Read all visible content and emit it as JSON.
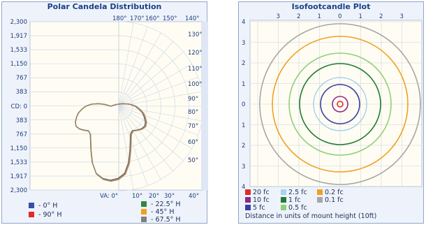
{
  "polar": {
    "title": "Polar Candela Distribution",
    "left_axis": [
      "2,300",
      "1,917",
      "1,533",
      "1,150",
      "767",
      "383",
      "CD: 0",
      "383",
      "767",
      "1,150",
      "1,533",
      "1,917",
      "2,300"
    ],
    "top_angles": [
      "180°",
      "170°",
      "160°",
      "150°",
      "140°"
    ],
    "right_angles": [
      "130°",
      "120°",
      "110°",
      "100°",
      "90°",
      "80°",
      "70°",
      "60°",
      "50°"
    ],
    "bottom_va": "VA: 0°",
    "bottom_angles": [
      "10°",
      "20°",
      "30°",
      "40°"
    ],
    "legend": [
      {
        "label": " - 0° H",
        "color": "#3a4fa0"
      },
      {
        "label": " - 90° H",
        "color": "#e02b2b"
      },
      {
        "label": " - 22.5° H",
        "color": "#2c8a3a"
      },
      {
        "label": " - 45° H",
        "color": "#f0a020"
      },
      {
        "label": " - 67.5° H",
        "color": "#808080"
      }
    ]
  },
  "iso": {
    "title": "Isofootcandle Plot",
    "top_ticks": [
      "3",
      "2",
      "1",
      "0",
      "1",
      "2",
      "3"
    ],
    "left_ticks": [
      "4",
      "3",
      "2",
      "1",
      "0",
      "1",
      "2",
      "3",
      "4"
    ],
    "legend": [
      {
        "label": "20 fc",
        "color": "#e02b2b"
      },
      {
        "label": "10 fc",
        "color": "#8a2a8a"
      },
      {
        "label": "5 fc",
        "color": "#3a3fa5"
      },
      {
        "label": "2.5 fc",
        "color": "#a8d3ec"
      },
      {
        "label": "1 fc",
        "color": "#1f7d33"
      },
      {
        "label": "0.5 fc",
        "color": "#8fcf7a"
      },
      {
        "label": "0.2 fc",
        "color": "#f0a020"
      },
      {
        "label": "0.1 fc",
        "color": "#a6a6a6"
      }
    ],
    "note": "Distance in units of mount height (10ft)"
  }
}
